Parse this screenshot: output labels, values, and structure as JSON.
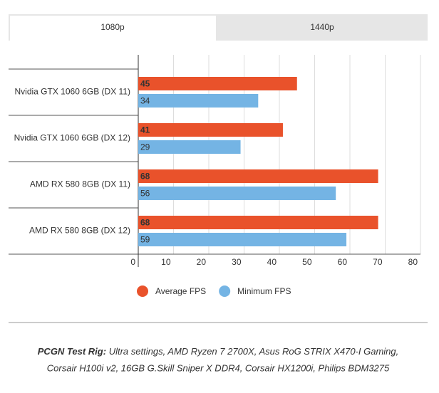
{
  "tabs": [
    "1080p",
    "1440p"
  ],
  "chart_data": {
    "type": "bar",
    "orientation": "horizontal",
    "categories": [
      "Nvidia GTX 1060 6GB (DX 11)",
      "Nvidia GTX 1060 6GB (DX 12)",
      "AMD RX 580 8GB (DX 11)",
      "AMD RX 580 8GB (DX 12)"
    ],
    "series": [
      {
        "name": "Average FPS",
        "color": "#e9522b",
        "values": [
          45,
          41,
          68,
          68
        ]
      },
      {
        "name": "Minimum FPS",
        "color": "#74b4e4",
        "values": [
          34,
          29,
          56,
          59
        ]
      }
    ],
    "xlim": [
      0,
      80
    ],
    "xticks": [
      0,
      10,
      20,
      30,
      40,
      50,
      60,
      70,
      80
    ],
    "grid": true,
    "legend": "bottom"
  },
  "caption": {
    "label": "PCGN Test Rig:",
    "lines": [
      "Ultra settings, AMD Ryzen 7 2700X, Asus RoG STRIX X470-I Gaming,",
      "Corsair H100i v2, 16GB G.Skill Sniper X DDR4, Corsair HX1200i, Philips BDM3275"
    ]
  }
}
